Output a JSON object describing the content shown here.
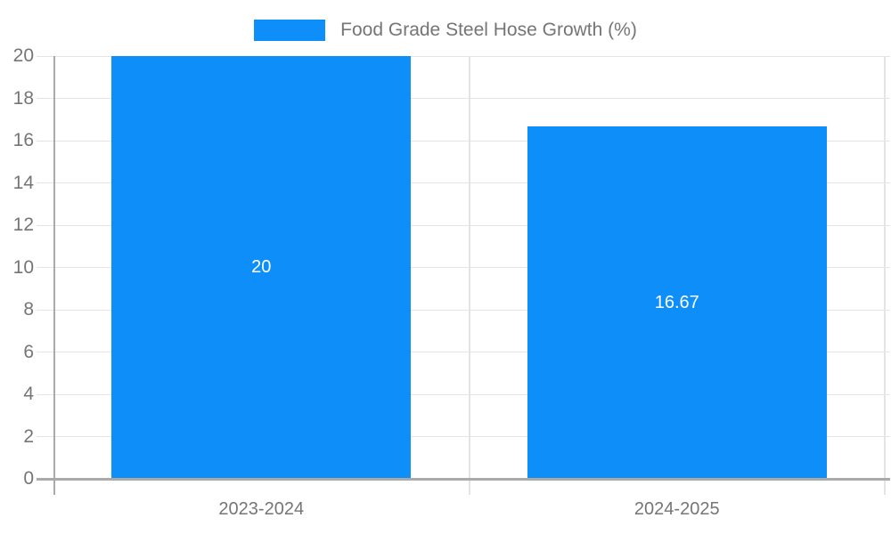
{
  "chart_data": {
    "type": "bar",
    "title": "Food Grade Steel Hose Growth (%)",
    "legend": {
      "position": "top",
      "entries": [
        "Food Grade Steel Hose Growth (%)"
      ]
    },
    "categories": [
      "2023-2024",
      "2024-2025"
    ],
    "series": [
      {
        "name": "Food Grade Steel Hose Growth (%)",
        "values": [
          20,
          16.67
        ]
      }
    ],
    "value_labels": [
      "20",
      "16.67"
    ],
    "xlabel": "",
    "ylabel": "",
    "ylim": [
      0,
      20
    ],
    "ytick_step": 2,
    "ytick_labels": [
      "0",
      "2",
      "4",
      "6",
      "8",
      "10",
      "12",
      "14",
      "16",
      "18",
      "20"
    ],
    "grid": true,
    "colors": {
      "bar": "#0d8ef8",
      "axis": "#aaaaaa",
      "grid": "#e4e4e4",
      "tick_text": "#757575",
      "value_text": "#ffffff",
      "background": "#ffffff"
    }
  }
}
